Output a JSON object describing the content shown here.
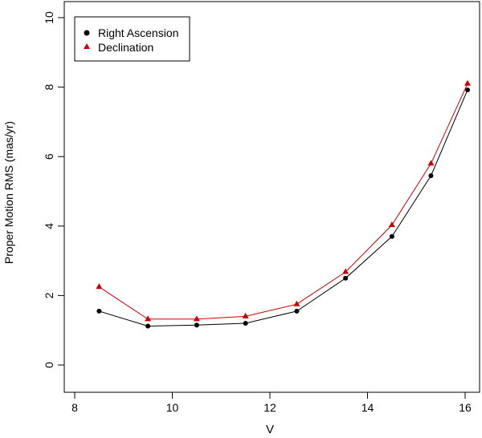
{
  "chart_data": {
    "type": "line",
    "xlabel": "V",
    "ylabel": "Proper Motion RMS (mas/yr)",
    "xlim": [
      7.8,
      16.2
    ],
    "ylim": [
      0,
      10
    ],
    "x_ticks": [
      8,
      10,
      12,
      14,
      16
    ],
    "y_ticks": [
      0,
      2,
      4,
      6,
      8,
      10
    ],
    "grid": false,
    "legend_position": "top-left",
    "x": [
      8.5,
      9.5,
      10.5,
      11.5,
      12.55,
      13.55,
      14.5,
      15.3,
      16.05
    ],
    "series": [
      {
        "name": "Right Ascension",
        "marker": "circle",
        "color": "#000000",
        "values": [
          1.55,
          1.12,
          1.15,
          1.2,
          1.55,
          2.5,
          3.7,
          5.45,
          7.92
        ]
      },
      {
        "name": "Declination",
        "marker": "triangle",
        "color": "#cc0000",
        "values": [
          2.25,
          1.32,
          1.32,
          1.4,
          1.75,
          2.68,
          4.03,
          5.8,
          8.1
        ]
      }
    ]
  }
}
